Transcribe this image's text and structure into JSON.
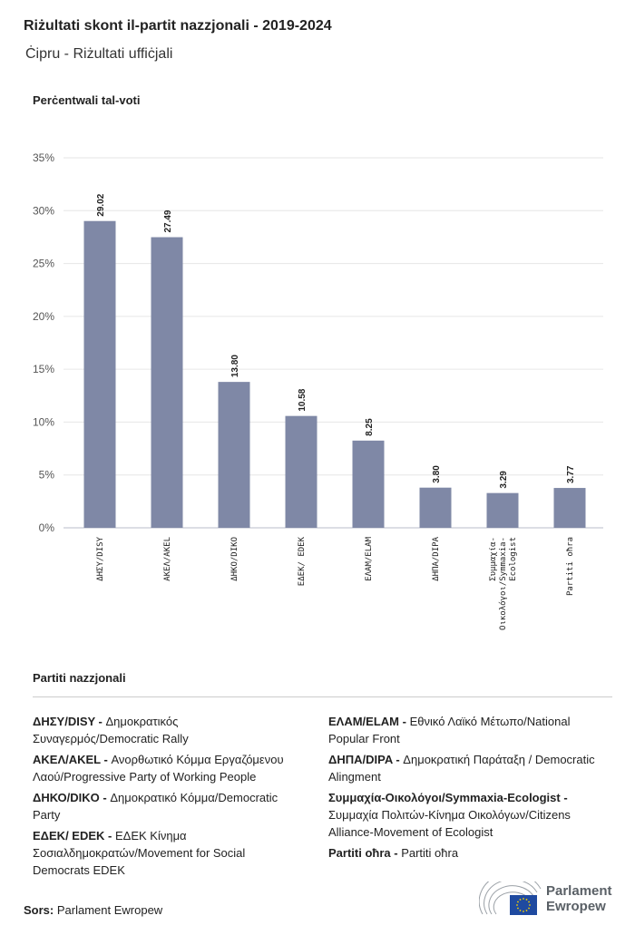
{
  "title": "Riżultati skont il-partit nazzjonali - 2019-2024",
  "subtitle": "Ċipru - Riżultati uffiċjali",
  "chart_data": {
    "type": "bar",
    "ylabel": "Perċentwali tal-voti",
    "categories": [
      "ΔΗΣΥ/DISY",
      "ΑΚΕΛ/AKEL",
      "ΔΗΚΟ/DIKO",
      "ΕΔΕΚ/ EDEK",
      "ΕΛΑΜ/ELAM",
      "ΔΗΠΑ/DIPA",
      "Συμμαχία-\nΟικολόγοι/Symmaxia-\nEcologist",
      "Partiti oħra"
    ],
    "values": [
      29.02,
      27.49,
      13.8,
      10.58,
      8.25,
      3.8,
      3.29,
      3.77
    ],
    "value_labels": [
      "29.02",
      "27.49",
      "13.80",
      "10.58",
      "8.25",
      "3.80",
      "3.29",
      "3.77"
    ],
    "ylim": [
      0,
      35
    ],
    "yticks": [
      "0%",
      "5%",
      "10%",
      "15%",
      "20%",
      "25%",
      "30%",
      "35%"
    ],
    "grid": true,
    "bar_color": "#7f88a6"
  },
  "legend": {
    "title": "Partiti nazzjonali",
    "left": [
      {
        "abbr": "ΔΗΣΥ/DISY -",
        "desc": "Δημοκρατικός Συναγερμός/Democratic Rally"
      },
      {
        "abbr": "ΑΚΕΛ/AKEL -",
        "desc": "Ανορθωτικό Κόμμα Εργαζόμενου Λαού/Progressive Party of Working People"
      },
      {
        "abbr": "ΔΗΚΟ/DIKO -",
        "desc": "Δημοκρατικό Κόμμα/Democratic Party"
      },
      {
        "abbr": "ΕΔΕΚ/ EDEK -",
        "desc": "ΕΔΕΚ Κίνημα Σοσιαλδημοκρατών/Movement for Social Democrats EDEK"
      }
    ],
    "right": [
      {
        "abbr": "ΕΛΑΜ/ELAM -",
        "desc": "Εθνικό Λαϊκό Μέτωπο/National Popular Front"
      },
      {
        "abbr": "ΔΗΠΑ/DIPA -",
        "desc": "Δημοκρατική Παράταξη / Democratic Alingment"
      },
      {
        "abbr": "Συμμαχία-Οικολόγοι/Symmaxia-Ecologist -",
        "desc": "Συμμαχία Πολιτών-Κίνημα Οικολόγων/Citizens Alliance-Movement of Ecologist"
      },
      {
        "abbr": "Partiti oħra -",
        "desc": "Partiti oħra"
      }
    ]
  },
  "source": {
    "label": "Sors:",
    "value": "Parlament Ewropew"
  },
  "logo": {
    "line1": "Parlament",
    "line2": "Ewropew",
    "colors": {
      "flag": "#1f4aa0",
      "stars": "#f5d000"
    }
  }
}
